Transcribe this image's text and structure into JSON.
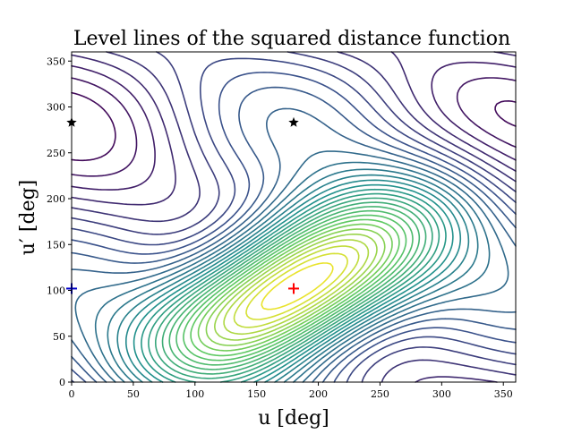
{
  "chart_data": {
    "type": "contour",
    "title": "Level lines of the squared distance function",
    "xlabel": "u [deg]",
    "ylabel": "u′ [deg]",
    "xlim": [
      0,
      360
    ],
    "ylim": [
      0,
      360
    ],
    "x_ticks": [
      0,
      50,
      100,
      150,
      200,
      250,
      300,
      350
    ],
    "y_ticks": [
      0,
      50,
      100,
      150,
      200,
      250,
      300,
      350
    ],
    "colormap": "viridis",
    "grid": false,
    "markers": [
      {
        "kind": "plus",
        "color": "#ff0000",
        "x": 180,
        "y": 102
      },
      {
        "kind": "plus",
        "color": "#0000cc",
        "x": 0,
        "y": 102
      },
      {
        "kind": "star",
        "color": "#000000",
        "x": 0,
        "y": 283
      },
      {
        "kind": "star",
        "color": "#000000",
        "x": 180,
        "y": 283
      }
    ]
  }
}
